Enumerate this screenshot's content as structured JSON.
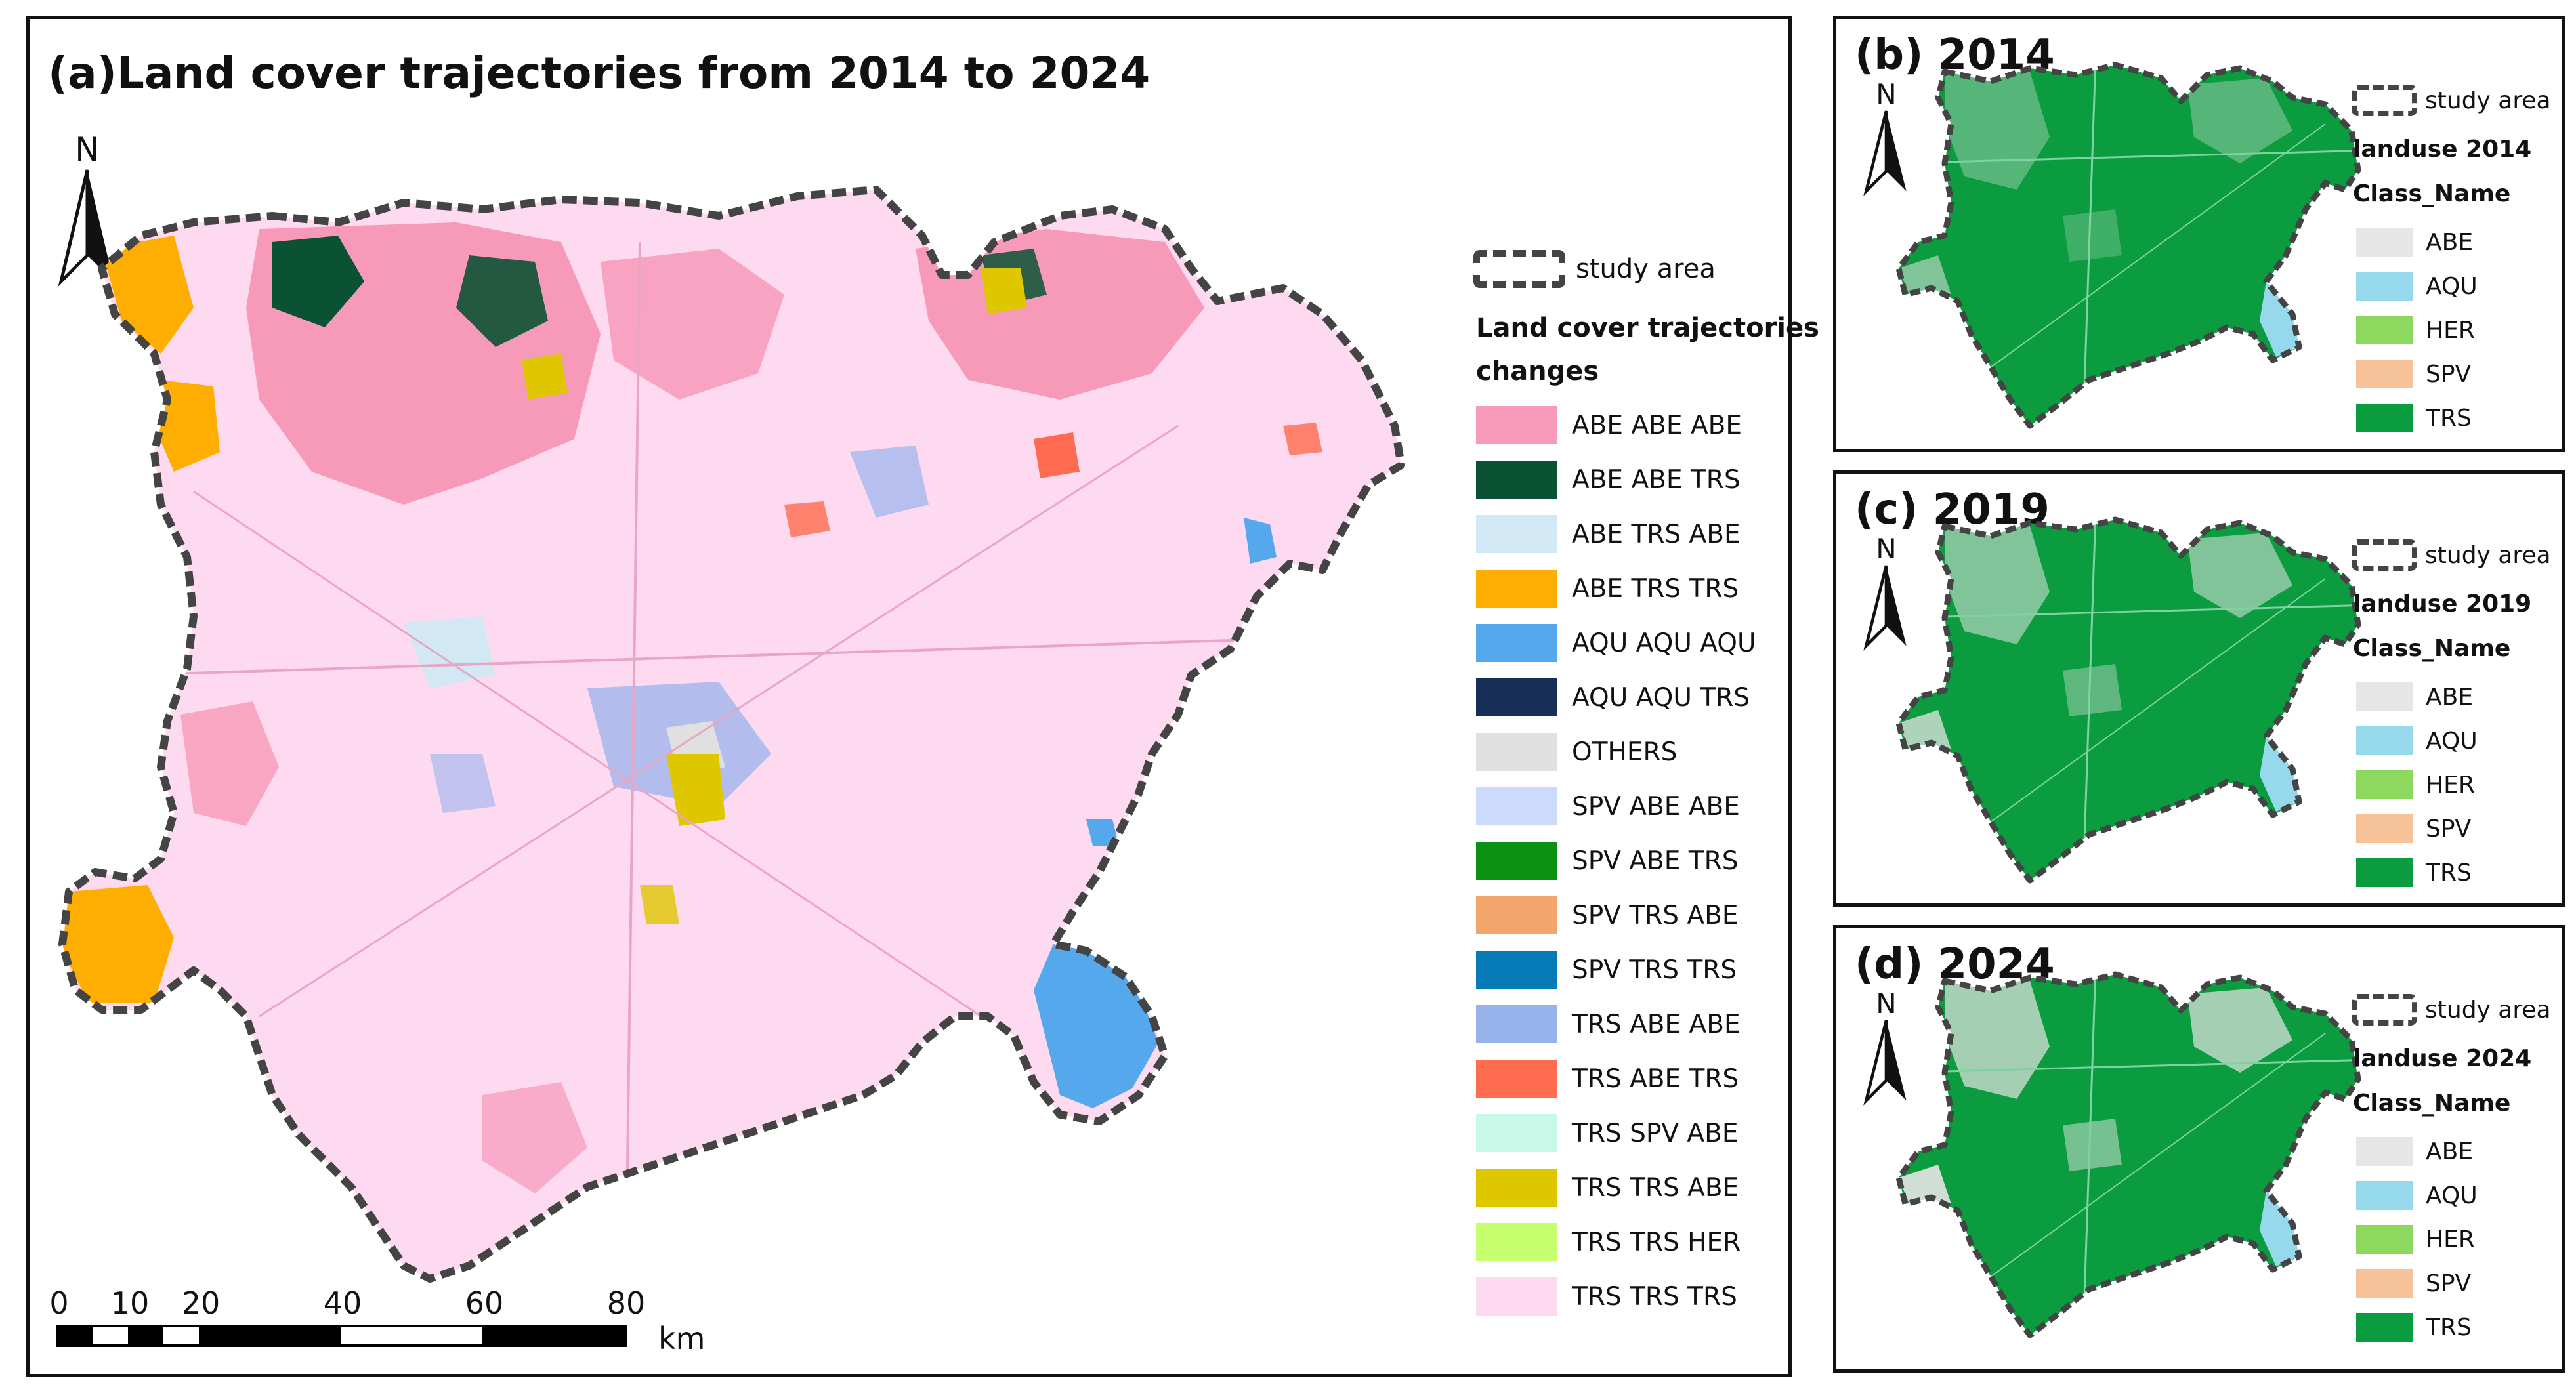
{
  "panel_a": {
    "title": "(a)Land cover trajectories from 2014 to 2024",
    "north": "N",
    "legend": {
      "study_area": "study area",
      "title_line1": "Land cover trajectories",
      "title_line2": "changes",
      "items": [
        {
          "label": "ABE ABE ABE",
          "color": "#F799B8"
        },
        {
          "label": "ABE ABE TRS",
          "color": "#0B5234"
        },
        {
          "label": "ABE TRS ABE",
          "color": "#D2E8F5"
        },
        {
          "label": "ABE TRS TRS",
          "color": "#FDAE00"
        },
        {
          "label": "AQU AQU AQU",
          "color": "#55A8EC"
        },
        {
          "label": "AQU AQU TRS",
          "color": "#172F57"
        },
        {
          "label": "OTHERS",
          "color": "#E0E0E0"
        },
        {
          "label": "SPV ABE ABE",
          "color": "#CCDBFB"
        },
        {
          "label": "SPV ABE TRS",
          "color": "#0B9212"
        },
        {
          "label": "SPV TRS ABE",
          "color": "#F2A66C"
        },
        {
          "label": "SPV TRS TRS",
          "color": "#077BB7"
        },
        {
          "label": "TRS ABE ABE",
          "color": "#98B3EC"
        },
        {
          "label": "TRS ABE TRS",
          "color": "#FF6C4F"
        },
        {
          "label": "TRS SPV ABE",
          "color": "#C8F8E8"
        },
        {
          "label": "TRS TRS ABE",
          "color": "#DFC700"
        },
        {
          "label": "TRS TRS HER",
          "color": "#C6FF6E"
        },
        {
          "label": "TRS TRS TRS",
          "color": "#FEDAF1"
        }
      ]
    },
    "scale": {
      "ticks": [
        "0",
        "10",
        "20",
        "40",
        "60",
        "80"
      ],
      "unit": "km"
    }
  },
  "small_panels": [
    {
      "title": "(b)  2014",
      "legend_title": "landuse 2014"
    },
    {
      "title": "(c)  2019",
      "legend_title": "landuse 2019"
    },
    {
      "title": "(d)  2024",
      "legend_title": "landuse 2024"
    }
  ],
  "small_common": {
    "north": "N",
    "study_area": "study area",
    "class_name": "Class_Name",
    "classes": [
      {
        "label": "ABE",
        "color": "#E6E6E6"
      },
      {
        "label": "AQU",
        "color": "#97D9EC"
      },
      {
        "label": "HER",
        "color": "#8DD95F"
      },
      {
        "label": "SPV",
        "color": "#F5C299"
      },
      {
        "label": "TRS",
        "color": "#0A9C3F"
      }
    ]
  }
}
